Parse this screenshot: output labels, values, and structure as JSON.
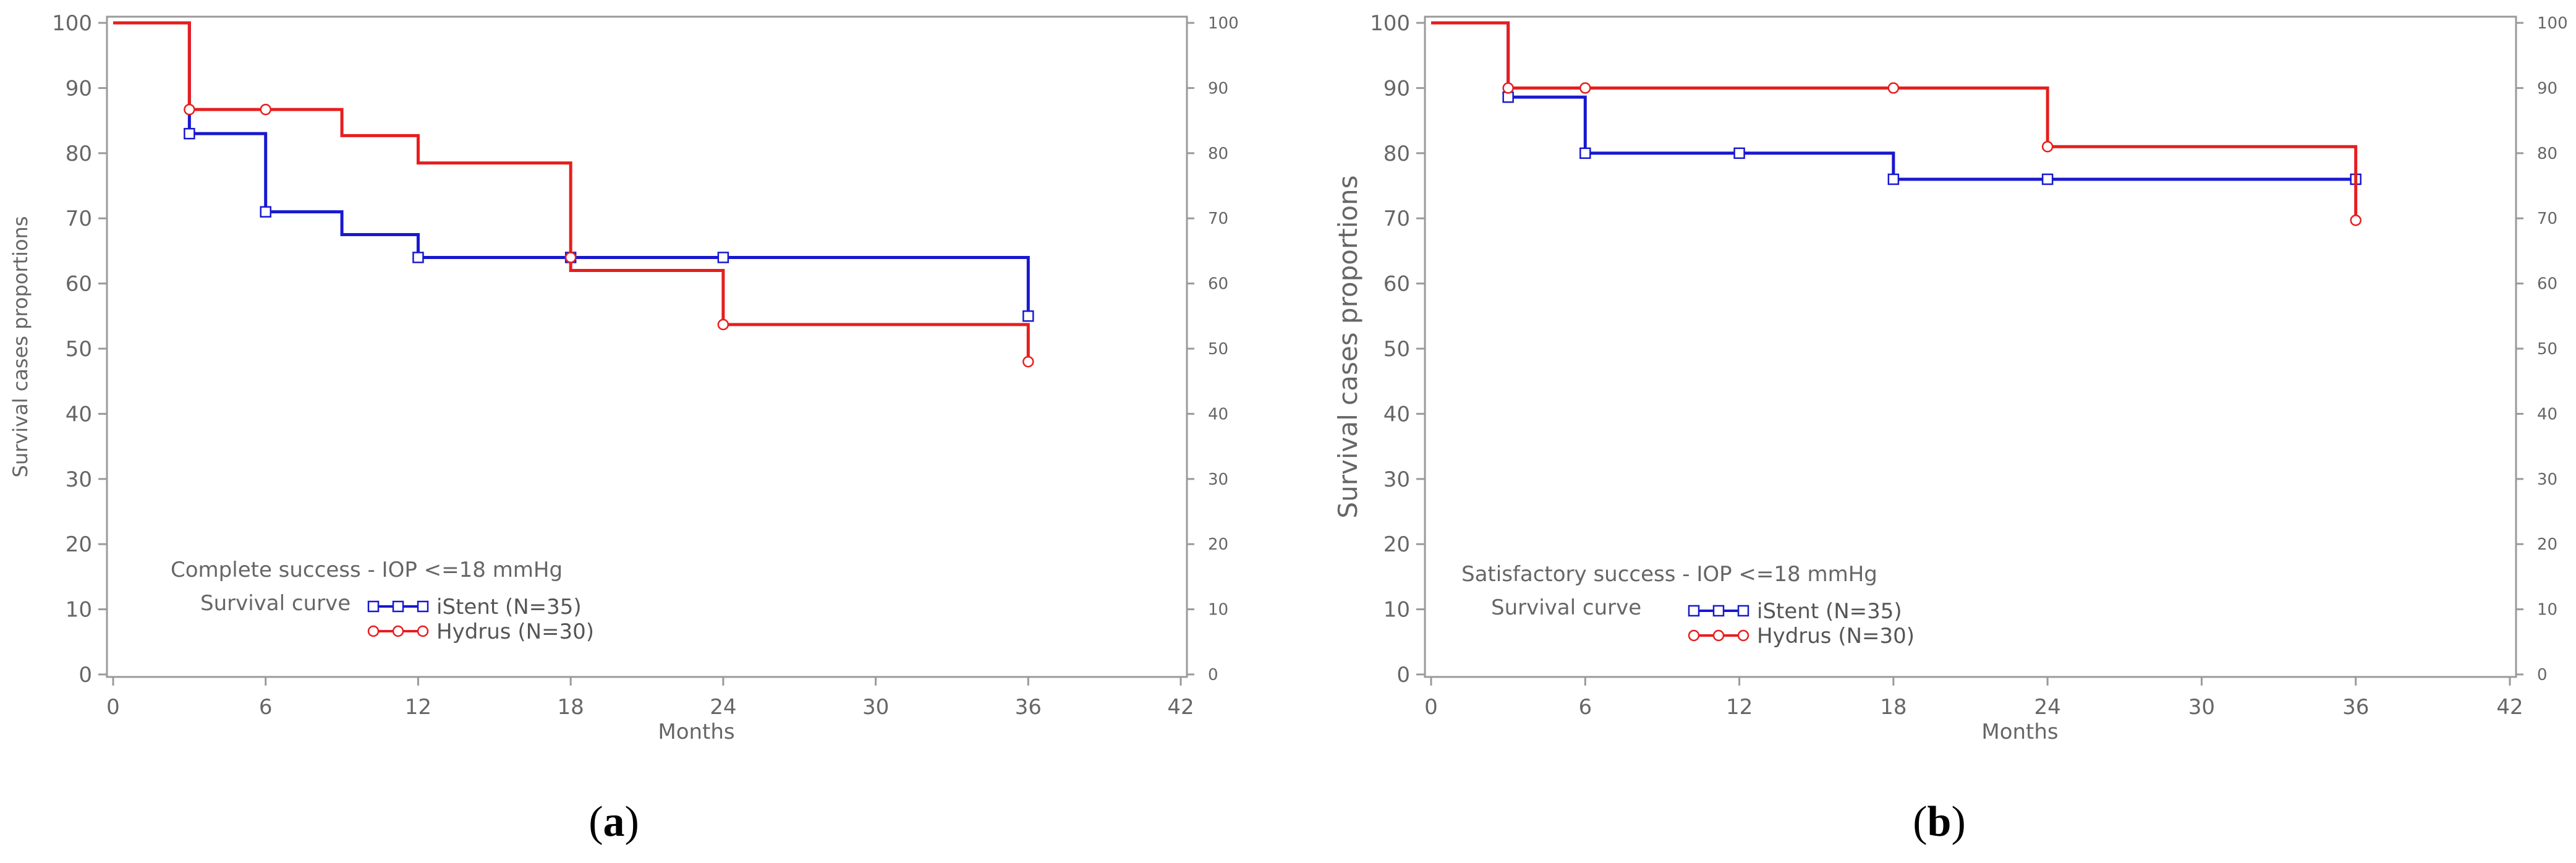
{
  "figure": {
    "colors": {
      "istent": "#1818d0",
      "hydrus": "#e61e1e",
      "axis": "#9a9a9a",
      "text": "#666666"
    }
  },
  "chart_data": [
    {
      "type": "line",
      "panel": "a",
      "caption_letter": "a",
      "title": "Complete success - IOP <=18 mmHg",
      "subtitle": "Survival curve",
      "xlabel": "Months",
      "ylabel": "Survival cases proportions",
      "xlim": [
        0,
        42
      ],
      "ylim": [
        0,
        100
      ],
      "xticks": [
        0,
        6,
        12,
        18,
        24,
        30,
        36,
        42
      ],
      "yticks": [
        0,
        10,
        20,
        30,
        40,
        50,
        60,
        70,
        80,
        90,
        100
      ],
      "legend_position": "bottom-left",
      "series": [
        {
          "key": "istent",
          "name": "iStent (N=35)",
          "marker": "square",
          "steps": [
            [
              0,
              100
            ],
            [
              3,
              83
            ],
            [
              6,
              71
            ],
            [
              9,
              67.5
            ],
            [
              12,
              64
            ],
            [
              36,
              55
            ]
          ],
          "censored": [
            [
              3,
              83
            ],
            [
              6,
              71
            ],
            [
              12,
              64
            ],
            [
              18,
              64
            ],
            [
              24,
              64
            ],
            [
              36,
              55
            ]
          ]
        },
        {
          "key": "hydrus",
          "name": "Hydrus (N=30)",
          "marker": "circle",
          "steps": [
            [
              0,
              100
            ],
            [
              3,
              86.7
            ],
            [
              9,
              82.7
            ],
            [
              12,
              78.5
            ],
            [
              18,
              62
            ],
            [
              24,
              53.7
            ],
            [
              36,
              48
            ]
          ],
          "censored": [
            [
              3,
              86.7
            ],
            [
              6,
              86.7
            ],
            [
              18,
              64
            ],
            [
              24,
              53.7
            ],
            [
              36,
              48
            ]
          ]
        }
      ]
    },
    {
      "type": "line",
      "panel": "b",
      "caption_letter": "b",
      "title": "Satisfactory success - IOP <=18 mmHg",
      "subtitle": "Survival curve",
      "xlabel": "Months",
      "ylabel": "Survival cases proportions",
      "xlim": [
        0,
        42
      ],
      "ylim": [
        0,
        100
      ],
      "xticks": [
        0,
        6,
        12,
        18,
        24,
        30,
        36,
        42
      ],
      "yticks": [
        0,
        10,
        20,
        30,
        40,
        50,
        60,
        70,
        80,
        90,
        100
      ],
      "legend_position": "bottom-left",
      "series": [
        {
          "key": "istent",
          "name": "iStent (N=35)",
          "marker": "square",
          "steps": [
            [
              0,
              100
            ],
            [
              3,
              88.6
            ],
            [
              6,
              80
            ],
            [
              18,
              76
            ],
            [
              36,
              76
            ]
          ],
          "censored": [
            [
              3,
              88.6
            ],
            [
              6,
              80
            ],
            [
              12,
              80
            ],
            [
              18,
              76
            ],
            [
              24,
              76
            ],
            [
              36,
              76
            ]
          ]
        },
        {
          "key": "hydrus",
          "name": "Hydrus (N=30)",
          "marker": "circle",
          "steps": [
            [
              0,
              100
            ],
            [
              3,
              90
            ],
            [
              24,
              81
            ],
            [
              36,
              69.7
            ]
          ],
          "censored": [
            [
              3,
              90
            ],
            [
              6,
              90
            ],
            [
              18,
              90
            ],
            [
              24,
              81
            ],
            [
              36,
              69.7
            ]
          ]
        }
      ]
    }
  ]
}
